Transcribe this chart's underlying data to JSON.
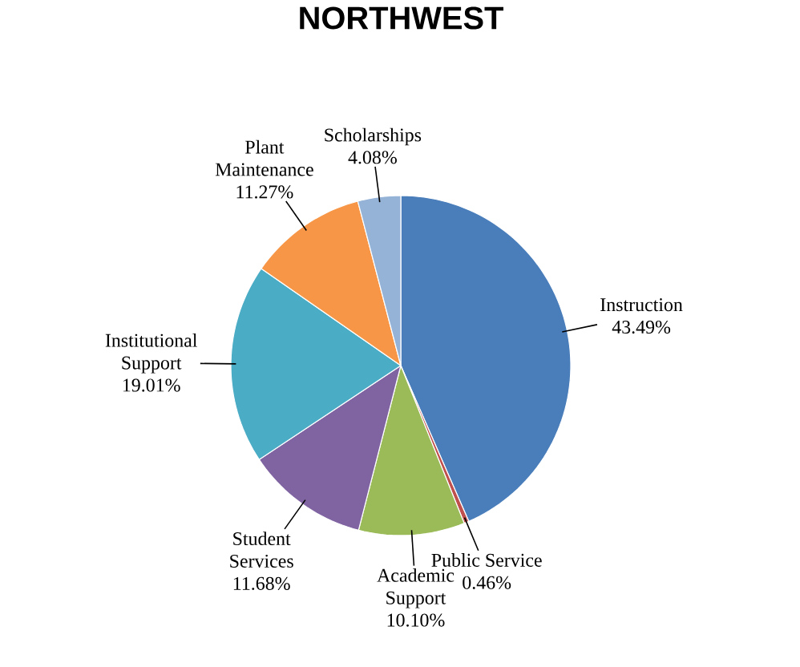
{
  "chart_data": {
    "type": "pie",
    "title": "NORTHWEST",
    "categories": [
      "Instruction",
      "Public Service",
      "Academic Support",
      "Student Services",
      "Institutional Support",
      "Plant Maintenance",
      "Scholarships"
    ],
    "values": [
      43.49,
      0.46,
      10.1,
      11.68,
      19.01,
      11.27,
      4.08
    ],
    "value_labels": [
      "43.49%",
      "0.46%",
      "10.10%",
      "11.68%",
      "19.01%",
      "11.27%",
      "4.08%"
    ],
    "colors": [
      "#4a7ebb",
      "#c0504d",
      "#9bbb59",
      "#8064a2",
      "#4bacc6",
      "#f79646",
      "#95b3d7"
    ]
  }
}
